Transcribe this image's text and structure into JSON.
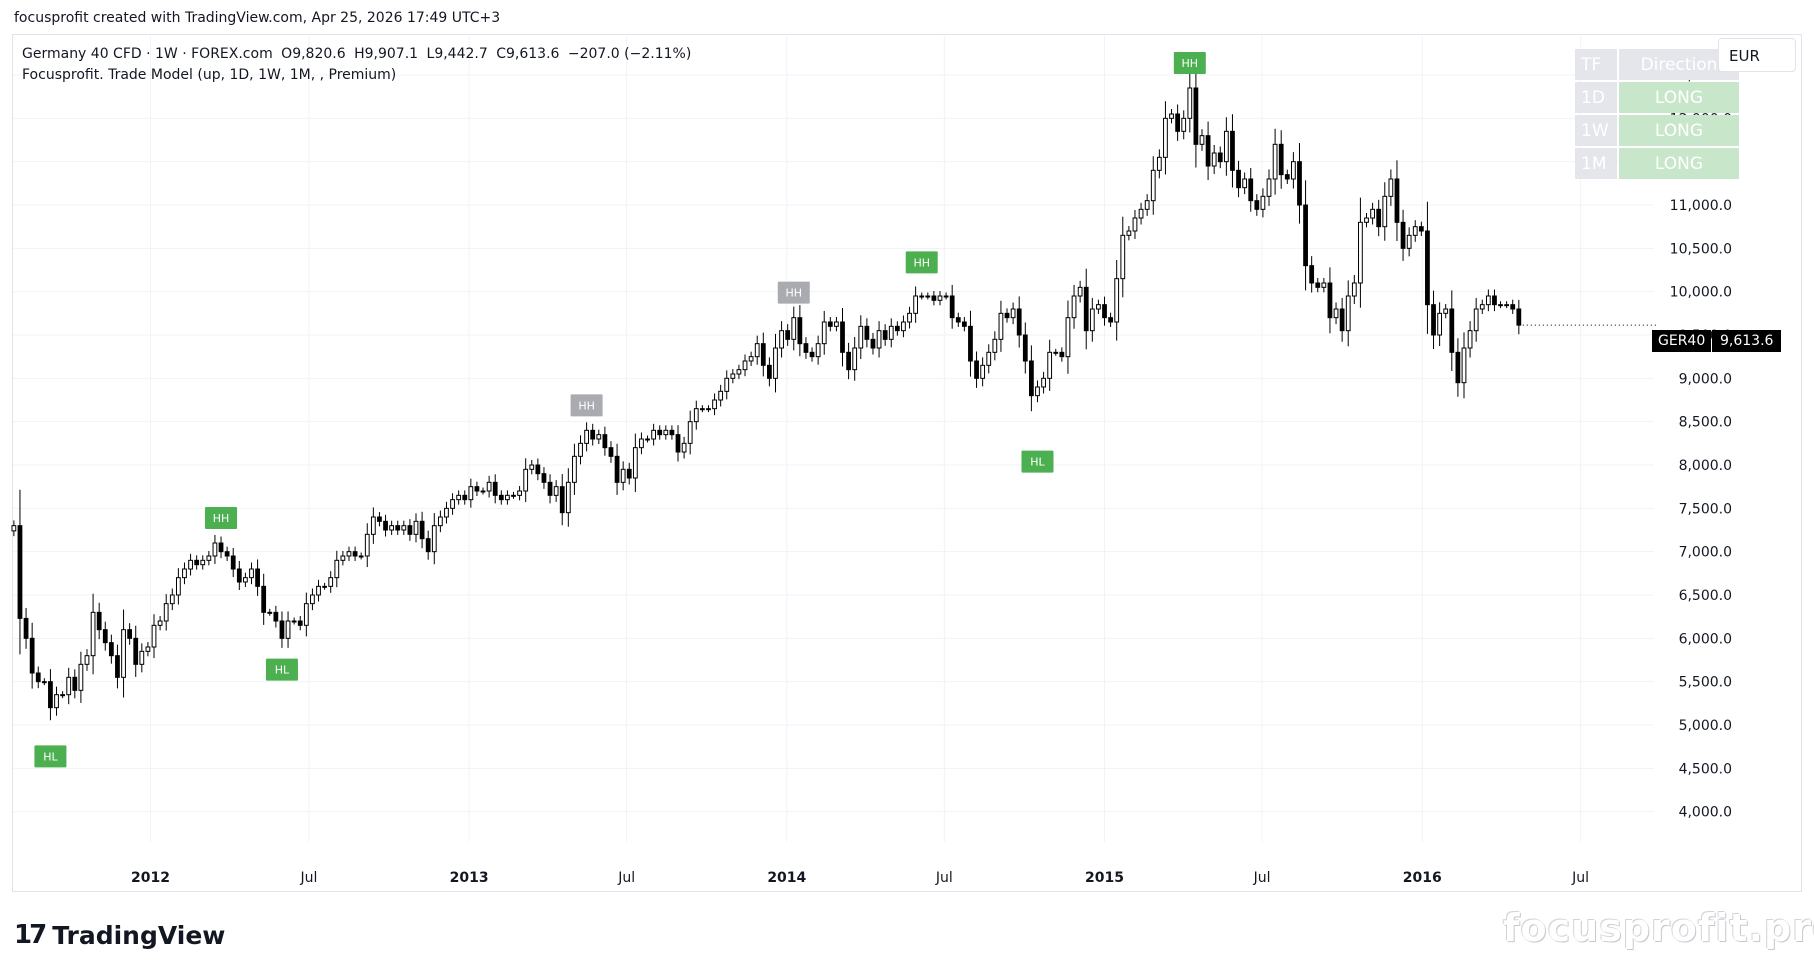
{
  "header": {
    "caption": "focusprofit created with TradingView.com, Apr 25, 2026 17:49 UTC+3"
  },
  "legend": {
    "symbol_line": "Germany 40 CFD · 1W · FOREX.com",
    "open": "O9,820.6",
    "high": "H9,907.1",
    "low": "L9,442.7",
    "close": "C9,613.6",
    "change": "−207.0 (−2.11%)",
    "indicator": "Focusprofit. Trade Model (up, 1D, 1W, 1M, , Premium)"
  },
  "tf_table": {
    "header_tf": "TF",
    "header_direction": "Direction",
    "rows": [
      {
        "tf": "1D",
        "direction": "LONG"
      },
      {
        "tf": "1W",
        "direction": "LONG"
      },
      {
        "tf": "1M",
        "direction": "LONG"
      }
    ]
  },
  "currency": "EUR",
  "price_tag": {
    "symbol": "GER40",
    "value": "9,613.6"
  },
  "branding": {
    "logo_mark": "17",
    "logo_text": "TradingView",
    "watermark": "focusprofit.pro"
  },
  "colors": {
    "hh_marker": "#4caf50",
    "hh_gray": "#a9abb0",
    "hl_marker": "#4caf50",
    "up_candle": "#ffffff",
    "down_candle": "#000000",
    "grid": "#f0f3fa"
  },
  "chart_data": {
    "type": "candlestick",
    "timeframe": "1W",
    "y_axis": {
      "ticks": [
        4000,
        4500,
        5000,
        5500,
        6000,
        6500,
        7000,
        7500,
        8000,
        8500,
        9000,
        9500,
        10000,
        10500,
        11000,
        11500,
        12000,
        12500
      ],
      "tick_labels": [
        "4,000.0",
        "4,500.0",
        "5,000.0",
        "5,500.0",
        "6,000.0",
        "6,500.0",
        "7,000.0",
        "7,500.0",
        "8,000.0",
        "8,500.0",
        "9,000.0",
        "9,500.0",
        "10,000.0",
        "10,500.0",
        "11,000.0",
        "11,500.0",
        "12,000.0",
        "12,500.0"
      ],
      "range": [
        3650,
        12950
      ]
    },
    "x_axis": {
      "labels": [
        {
          "text": "2012",
          "date": "2012-01-01",
          "bold": true
        },
        {
          "text": "Jul",
          "date": "2012-07-01",
          "bold": false
        },
        {
          "text": "2013",
          "date": "2013-01-01",
          "bold": true
        },
        {
          "text": "Jul",
          "date": "2013-07-01",
          "bold": false
        },
        {
          "text": "2014",
          "date": "2014-01-01",
          "bold": true
        },
        {
          "text": "Jul",
          "date": "2014-07-01",
          "bold": false
        },
        {
          "text": "2015",
          "date": "2015-01-01",
          "bold": true
        },
        {
          "text": "Jul",
          "date": "2015-07-01",
          "bold": false
        },
        {
          "text": "2016",
          "date": "2016-01-01",
          "bold": true
        },
        {
          "text": "Jul",
          "date": "2016-07-01",
          "bold": false
        }
      ],
      "range": [
        "2011-07-27",
        "2016-09-21"
      ]
    },
    "last_close": 9613.6,
    "closes": [
      "2011-07-28:7300",
      "2011-08-04:6230",
      "2011-08-11:6000",
      "2011-08-18:5600",
      "2011-08-25:5500",
      "2011-09-01:5500",
      "2011-09-08:5200",
      "2011-09-15:5350",
      "2011-09-22:5350",
      "2011-09-29:5550",
      "2011-10-06:5400",
      "2011-10-13:5700",
      "2011-10-20:5800",
      "2011-10-27:6300",
      "2011-11-03:6100",
      "2011-11-10:5950",
      "2011-11-17:5800",
      "2011-11-24:5550",
      "2011-12-01:6100",
      "2011-12-08:6000",
      "2011-12-15:5700",
      "2011-12-22:5850",
      "2011-12-29:5900",
      "2012-01-05:6150",
      "2012-01-12:6200",
      "2012-01-19:6400",
      "2012-01-26:6500",
      "2012-02-02:6700",
      "2012-02-09:6800",
      "2012-02-16:6900",
      "2012-02-23:6850",
      "2012-03-01:6900",
      "2012-03-08:6950",
      "2012-03-15:7100",
      "2012-03-22:7000",
      "2012-03-29:6950",
      "2012-04-05:6800",
      "2012-04-12:6650",
      "2012-04-19:6700",
      "2012-04-26:6800",
      "2012-05-03:6600",
      "2012-05-10:6300",
      "2012-05-17:6300",
      "2012-05-24:6200",
      "2012-05-31:6000",
      "2012-06-07:6200",
      "2012-06-14:6200",
      "2012-06-21:6150",
      "2012-06-28:6400",
      "2012-07-05:6500",
      "2012-07-12:6600",
      "2012-07-19:6600",
      "2012-07-26:6700",
      "2012-08-02:6900",
      "2012-08-09:6950",
      "2012-08-16:7000",
      "2012-08-23:6950",
      "2012-08-30:6950",
      "2012-09-06:7200",
      "2012-09-13:7400",
      "2012-09-20:7350",
      "2012-09-27:7250",
      "2012-10-04:7300",
      "2012-10-11:7250",
      "2012-10-18:7300",
      "2012-10-25:7200",
      "2012-11-01:7350",
      "2012-11-08:7150",
      "2012-11-15:7000",
      "2012-11-22:7300",
      "2012-11-29:7400",
      "2012-12-06:7500",
      "2012-12-13:7600",
      "2012-12-20:7650",
      "2012-12-27:7600",
      "2013-01-03:7750",
      "2013-01-10:7700",
      "2013-01-17:7700",
      "2013-01-24:7800",
      "2013-01-31:7650",
      "2013-02-07:7600",
      "2013-02-14:7650",
      "2013-02-21:7650",
      "2013-02-28:7700",
      "2013-03-07:7950",
      "2013-03-14:8000",
      "2013-03-21:7900",
      "2013-03-28:7800",
      "2013-04-04:7650",
      "2013-04-11:7750",
      "2013-04-18:7450",
      "2013-04-25:7800",
      "2013-05-02:8100",
      "2013-05-09:8250",
      "2013-05-16:8400",
      "2013-05-23:8300",
      "2013-05-30:8350",
      "2013-06-06:8200",
      "2013-06-13:8100",
      "2013-06-20:7800",
      "2013-06-27:7950",
      "2013-07-04:7850",
      "2013-07-11:8200",
      "2013-07-18:8300",
      "2013-07-25:8300",
      "2013-08-01:8400",
      "2013-08-08:8350",
      "2013-08-15:8400",
      "2013-08-22:8350",
      "2013-08-29:8150",
      "2013-09-05:8250",
      "2013-09-12:8500",
      "2013-09-19:8650",
      "2013-09-26:8650",
      "2013-10-03:8650",
      "2013-10-10:8750",
      "2013-10-17:8850",
      "2013-10-24:9000",
      "2013-10-31:9050",
      "2013-11-07:9100",
      "2013-11-14:9200",
      "2013-11-21:9250",
      "2013-11-28:9400",
      "2013-12-05:9150",
      "2013-12-12:9000",
      "2013-12-19:9350",
      "2013-12-26:9550",
      "2014-01-02:9450",
      "2014-01-09:9700",
      "2014-01-16:9400",
      "2014-01-23:9300",
      "2014-01-30:9250",
      "2014-02-06:9400",
      "2014-02-13:9650",
      "2014-02-20:9600",
      "2014-02-27:9650",
      "2014-03-06:9300",
      "2014-03-13:9100",
      "2014-03-20:9350",
      "2014-03-27:9600",
      "2014-04-03:9450",
      "2014-04-10:9350",
      "2014-04-17:9550",
      "2014-04-24:9450",
      "2014-05-01:9600",
      "2014-05-08:9550",
      "2014-05-15:9650",
      "2014-05-22:9750",
      "2014-05-29:9950",
      "2014-06-05:9950",
      "2014-06-12:9950",
      "2014-06-19:9900",
      "2014-06-26:9950",
      "2014-07-03:9950",
      "2014-07-10:9700",
      "2014-07-17:9650",
      "2014-07-24:9600",
      "2014-07-31:9200",
      "2014-08-07:9000",
      "2014-08-14:9150",
      "2014-08-21:9300",
      "2014-08-28:9450",
      "2014-09-04:9750",
      "2014-09-11:9700",
      "2014-09-18:9800",
      "2014-09-25:9500",
      "2014-10-02:9200",
      "2014-10-09:8800",
      "2014-10-16:8900",
      "2014-10-23:9000",
      "2014-10-30:9300",
      "2014-11-06:9300",
      "2014-11-13:9250",
      "2014-11-20:9700",
      "2014-11-27:9950",
      "2014-12-04:10050",
      "2014-12-11:9550",
      "2014-12-18:9800",
      "2014-12-25:9850",
      "2015-01-01:9700",
      "2015-01-08:9650",
      "2015-01-15:10150",
      "2015-01-22:10650",
      "2015-01-29:10700",
      "2015-02-05:10850",
      "2015-02-12:10950",
      "2015-02-19:11050",
      "2015-02-26:11400",
      "2015-03-05:11550",
      "2015-03-12:12000",
      "2015-03-19:12050",
      "2015-03-26:11850",
      "2015-04-02:12000",
      "2015-04-09:12350",
      "2015-04-16:11700",
      "2015-04-23:11800",
      "2015-04-30:11450",
      "2015-05-07:11600",
      "2015-05-14:11500",
      "2015-05-21:11850",
      "2015-05-28:11400",
      "2015-06-04:11200",
      "2015-06-11:11300",
      "2015-06-18:11050",
      "2015-06-25:10950",
      "2015-07-02:11100",
      "2015-07-09:11300",
      "2015-07-16:11700",
      "2015-07-23:11350",
      "2015-07-30:11300",
      "2015-08-06:11500",
      "2015-08-13:11000",
      "2015-08-20:10300",
      "2015-08-27:10100",
      "2015-09-03:10050",
      "2015-09-10:10100",
      "2015-09-17:9700",
      "2015-09-24:9800",
      "2015-10-01:9550",
      "2015-10-08:9950",
      "2015-10-15:10100",
      "2015-10-22:10800",
      "2015-10-29:10850",
      "2015-11-05:10950",
      "2015-11-12:10750",
      "2015-11-19:11100",
      "2015-11-26:11300",
      "2015-12-03:10800",
      "2015-12-10:10500",
      "2015-12-17:10650",
      "2015-12-24:10750",
      "2015-12-31:10700",
      "2016-01-07:9850",
      "2016-01-14:9500",
      "2016-01-21:9750",
      "2016-01-28:9800",
      "2016-02-04:9300",
      "2016-02-11:8950",
      "2016-02-18:9350",
      "2016-02-25:9550",
      "2016-03-03:9800",
      "2016-03-10:9850",
      "2016-03-17:9950",
      "2016-03-24:9850",
      "2016-03-31:9850",
      "2016-04-07:9850",
      "2016-04-14:9800",
      "2016-04-21:9614"
    ],
    "markers": [
      {
        "label": "HH",
        "date": "2012-03-22",
        "price": 7100,
        "position": "above",
        "style": "green"
      },
      {
        "label": "HL",
        "date": "2011-09-08",
        "price": 4950,
        "position": "below",
        "style": "green"
      },
      {
        "label": "HL",
        "date": "2012-05-31",
        "price": 5950,
        "position": "below",
        "style": "green"
      },
      {
        "label": "HH",
        "date": "2013-05-16",
        "price": 8400,
        "position": "above",
        "style": "gray"
      },
      {
        "label": "HH",
        "date": "2014-01-09",
        "price": 9700,
        "position": "above",
        "style": "gray"
      },
      {
        "label": "HH",
        "date": "2014-06-05",
        "price": 10050,
        "position": "above",
        "style": "green"
      },
      {
        "label": "HL",
        "date": "2014-10-16",
        "price": 8350,
        "position": "below",
        "style": "green"
      },
      {
        "label": "HH",
        "date": "2015-04-09",
        "price": 12350,
        "position": "above",
        "style": "green"
      }
    ]
  }
}
